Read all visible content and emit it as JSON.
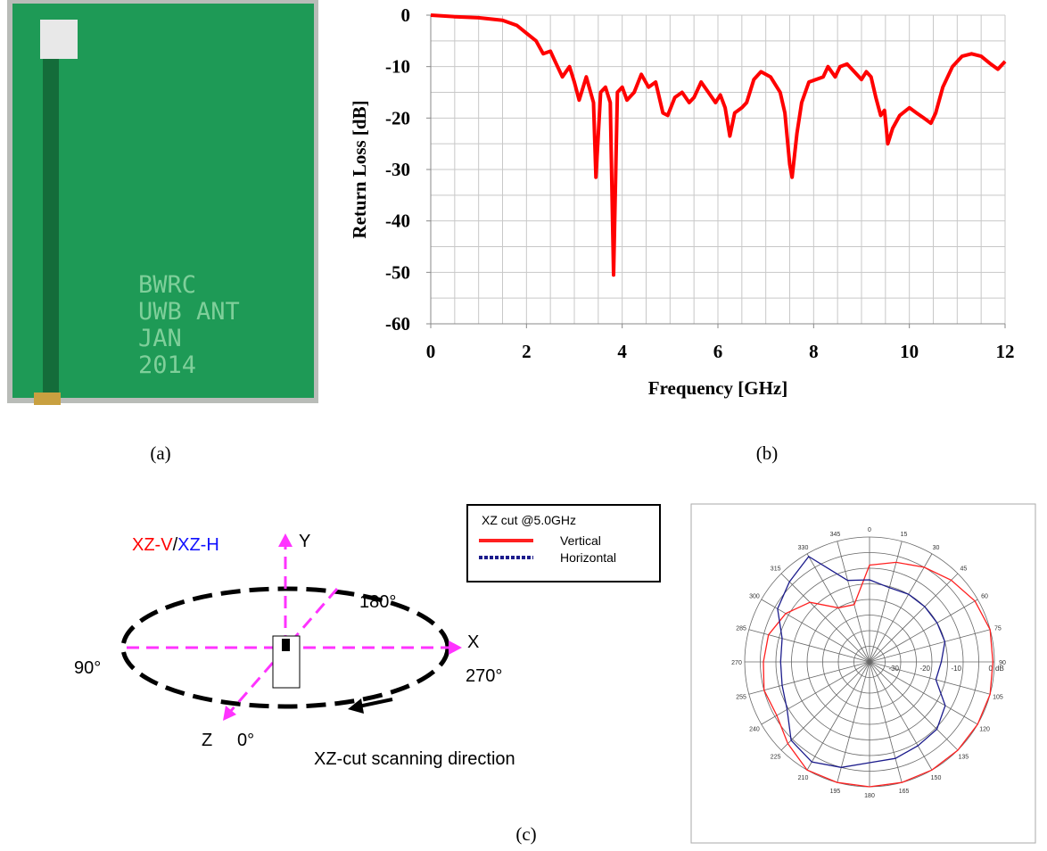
{
  "photo": {
    "label_lines": [
      "BWRC",
      "UWB ANT",
      "JAN",
      "2014"
    ]
  },
  "captions": [
    "(a)",
    "(b)",
    "(c)"
  ],
  "diagram": {
    "title_parts": [
      "XZ-V",
      "/",
      "XZ-H"
    ],
    "axis_y": "Y",
    "axis_x": "X",
    "axis_z": "Z",
    "angle_180": "180°",
    "angle_90": "90°",
    "angle_270": "270°",
    "angle_0": "0°",
    "scan_label": "XZ-cut scanning direction"
  },
  "chart_data": [
    {
      "type": "line",
      "xlabel": "Frequency [GHz]",
      "ylabel": "Return Loss [dB]",
      "color": "#ff0000",
      "x": [
        0,
        0.5,
        1,
        1.5,
        1.8,
        2,
        2.2,
        2.35,
        2.5,
        2.6,
        2.75,
        2.9,
        3.0,
        3.1,
        3.25,
        3.4,
        3.45,
        3.55,
        3.65,
        3.75,
        3.82,
        3.9,
        4.0,
        4.1,
        4.25,
        4.4,
        4.55,
        4.7,
        4.85,
        4.95,
        5.1,
        5.25,
        5.4,
        5.5,
        5.65,
        5.8,
        5.95,
        6.05,
        6.15,
        6.25,
        6.35,
        6.5,
        6.6,
        6.75,
        6.9,
        7.1,
        7.3,
        7.4,
        7.5,
        7.55,
        7.65,
        7.75,
        7.9,
        8.05,
        8.2,
        8.3,
        8.45,
        8.55,
        8.7,
        8.85,
        9.0,
        9.1,
        9.2,
        9.3,
        9.4,
        9.48,
        9.55,
        9.65,
        9.8,
        10.0,
        10.15,
        10.3,
        10.45,
        10.55,
        10.7,
        10.9,
        11.1,
        11.3,
        11.5,
        11.7,
        11.85,
        12
      ],
      "values": [
        0,
        -0.3,
        -0.5,
        -1,
        -2,
        -3.5,
        -5,
        -7.5,
        -7,
        -9,
        -12,
        -10,
        -13,
        -16.5,
        -12,
        -17,
        -31.5,
        -15,
        -14,
        -17,
        -50.5,
        -15,
        -14,
        -16.5,
        -15,
        -11.5,
        -14,
        -13,
        -19,
        -19.5,
        -16,
        -15,
        -17,
        -16,
        -13,
        -15,
        -17,
        -15.5,
        -18,
        -23.5,
        -19,
        -18,
        -17,
        -12.5,
        -11,
        -12,
        -15,
        -19,
        -29,
        -31.5,
        -23,
        -17,
        -13,
        -12.5,
        -12,
        -10,
        -12,
        -10,
        -9.5,
        -11,
        -12.5,
        -11,
        -12,
        -16,
        -19.5,
        -18.5,
        -25,
        -22,
        -19.5,
        -18,
        -19,
        -20,
        -21,
        -19,
        -14,
        -10,
        -8,
        -7.5,
        -8,
        -9.5,
        -10.5,
        -9
      ],
      "xlim": [
        0,
        12
      ],
      "xticks": [
        0,
        2,
        4,
        6,
        8,
        10,
        12
      ],
      "ylim": [
        -60,
        0
      ],
      "yticks": [
        0,
        -10,
        -20,
        -30,
        -40,
        -50,
        -60
      ],
      "xgrid": [
        0,
        0.5,
        1,
        1.5,
        2,
        2.5,
        3,
        3.5,
        4,
        4.5,
        5,
        5.5,
        6,
        6.5,
        7,
        7.5,
        8,
        8.5,
        9,
        9.5,
        10,
        10.5,
        11,
        11.5,
        12
      ],
      "ygrid": [
        0,
        -5,
        -10,
        -15,
        -20,
        -25,
        -30,
        -35,
        -40,
        -45,
        -50,
        -55,
        -60
      ],
      "grid": true
    },
    {
      "type": "polar",
      "legend_title": "XZ cut @5.0GHz",
      "theta": [
        0,
        15,
        30,
        45,
        60,
        75,
        90,
        105,
        120,
        135,
        150,
        165,
        180,
        195,
        210,
        225,
        240,
        255,
        270,
        285,
        300,
        315,
        330,
        345
      ],
      "rlim": [
        -40,
        0
      ],
      "rticks": [
        -30,
        -20,
        -10,
        0
      ],
      "rgrid": [
        -35,
        -30,
        -25,
        -20,
        -15,
        -10,
        -5,
        0
      ],
      "r_unit": "dB",
      "series": [
        {
          "name": "Vertical",
          "color": "#ff2020",
          "legend_style": "solid",
          "values": [
            -9,
            -7,
            -5,
            -3,
            -1,
            0,
            -0.5,
            0,
            0,
            0,
            0,
            0,
            0,
            0,
            0,
            -3,
            -5.7,
            -5,
            -6,
            -6.5,
            -9,
            -13,
            -20,
            -21
          ]
        },
        {
          "name": "Horizontal",
          "color": "#1c1c8c",
          "legend_style": "dotted",
          "values": [
            -13.7,
            -15.4,
            -15,
            -15,
            -15,
            -15,
            -17,
            -18,
            -12,
            -9.5,
            -9,
            -8,
            -7.7,
            -5,
            -3,
            -4.5,
            -9.5,
            -11,
            -11.5,
            -11,
            -6,
            -3.7,
            -1,
            -13
          ]
        }
      ]
    }
  ]
}
